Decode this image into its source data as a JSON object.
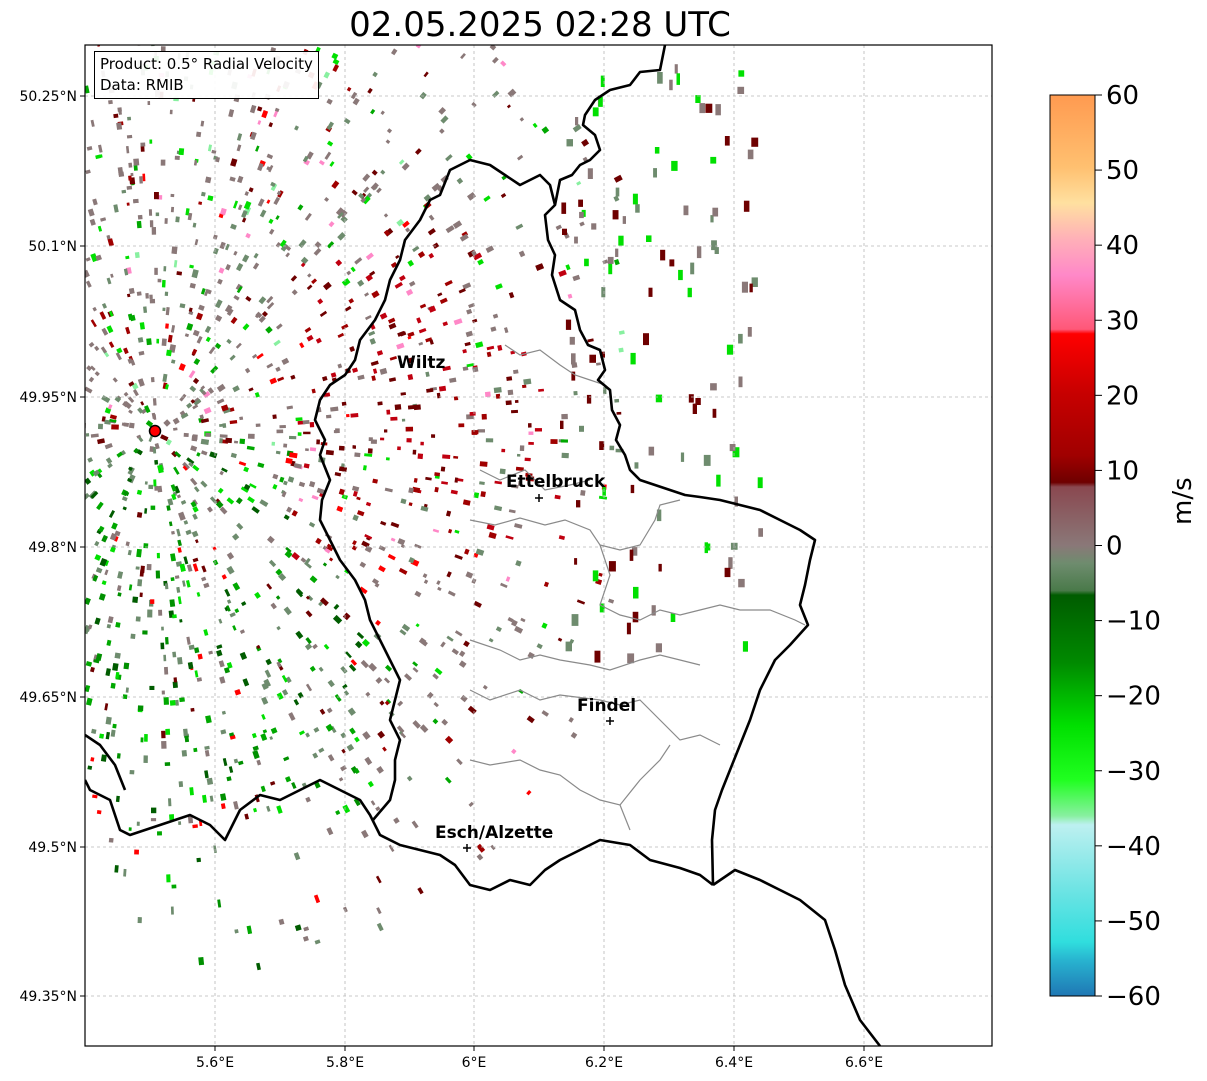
{
  "title": "02.05.2025 02:28 UTC",
  "info": {
    "product": "Product: 0.5° Radial Velocity",
    "data": "Data: RMIB"
  },
  "colorbar": {
    "unit": "m/s",
    "min": -60,
    "max": 60,
    "ticks": [
      "60",
      "50",
      "40",
      "30",
      "20",
      "10",
      "0",
      "−10",
      "−20",
      "−30",
      "−40",
      "−50",
      "−60"
    ],
    "colors": {
      "dark_blue": "#1f77b4",
      "cyan": "#30dede",
      "light_cyan": "#bdf0f0",
      "light_green": "#88f0a0",
      "green": "#00e000",
      "dark_green": "#005c00",
      "gray_green": "#6e8c6e",
      "gray": "#8a7878",
      "maroon": "#6e0000",
      "red": "#ff0000",
      "pink": "#ff88c8",
      "peach": "#ffe0a0",
      "orange": "#ff9a50"
    }
  },
  "axes": {
    "lon_ticks": [
      "5.6°E",
      "5.8°E",
      "6°E",
      "6.2°E",
      "6.4°E",
      "6.6°E"
    ],
    "lat_ticks": [
      "50.25°N",
      "50.1°N",
      "49.95°N",
      "49.8°N",
      "49.65°N",
      "49.5°N",
      "49.35°N"
    ]
  },
  "cities": [
    {
      "name": "Wiltz"
    },
    {
      "name": "Ettelbruck"
    },
    {
      "name": "Findel"
    },
    {
      "name": "Esch/Alzette"
    }
  ]
}
